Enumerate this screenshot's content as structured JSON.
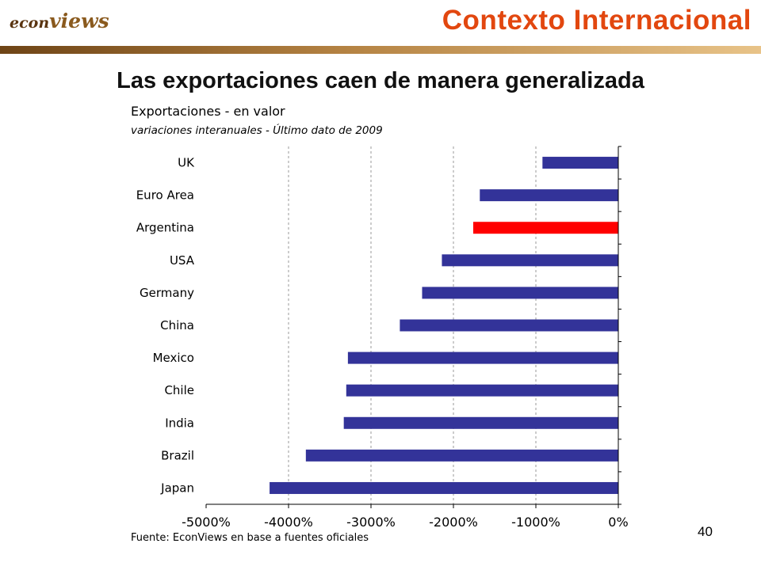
{
  "header": {
    "logo_prefix": "econ",
    "logo_suffix": "views",
    "section_title": "Contexto Internacional"
  },
  "slide": {
    "title": "Las exportaciones caen de manera generalizada",
    "source": "Fuente: EconViews en base a fuentes oficiales",
    "page_number": "40"
  },
  "colors": {
    "bar": "#333399",
    "highlight": "#ff0000",
    "accent": "#e2470f"
  },
  "chart_data": {
    "type": "bar",
    "orientation": "horizontal",
    "title": "Exportaciones - en valor",
    "subtitle": "variaciones interanuales  - Último dato de 2009",
    "categories": [
      "UK",
      "Euro Area",
      "Argentina",
      "USA",
      "Germany",
      "China",
      "Mexico",
      "Chile",
      "India",
      "Brazil",
      "Japan"
    ],
    "values": [
      -920,
      -1680,
      -1760,
      -2140,
      -2380,
      -2650,
      -3280,
      -3300,
      -3330,
      -3790,
      -4230
    ],
    "highlight": "Argentina",
    "xlim": [
      -5000,
      0
    ],
    "ticks": [
      -5000,
      -4000,
      -3000,
      -2000,
      -1000,
      0
    ],
    "tick_labels": [
      "-5000%",
      "-4000%",
      "-3000%",
      "-2000%",
      "-1000%",
      "0%"
    ],
    "grid": "vertical-dashed",
    "legend": "none"
  }
}
